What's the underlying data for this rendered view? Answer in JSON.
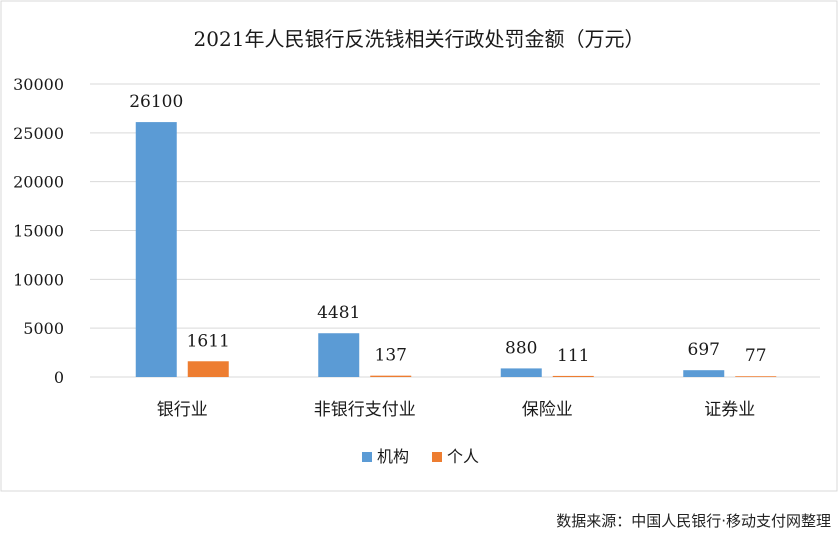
{
  "chart_data": {
    "type": "bar",
    "title": "2021年人民银行反洗钱相关行政处罚金额（万元）",
    "categories": [
      "银行业",
      "非银行支付业",
      "保险业",
      "证券业"
    ],
    "series": [
      {
        "name": "机构",
        "values": [
          26100,
          4481,
          880,
          697
        ],
        "color": "#5B9BD5"
      },
      {
        "name": "个人",
        "values": [
          1611,
          137,
          111,
          77
        ],
        "color": "#ED7D31"
      }
    ],
    "ylim": [
      0,
      30000
    ],
    "yticks": [
      "30000",
      "25000",
      "20000",
      "15000",
      "10000",
      "5000",
      "0"
    ],
    "grid": true,
    "legend_position": "bottom"
  },
  "source_note": "数据来源：中国人民银行·移动支付网整理",
  "watermark_text": "移动支付网"
}
